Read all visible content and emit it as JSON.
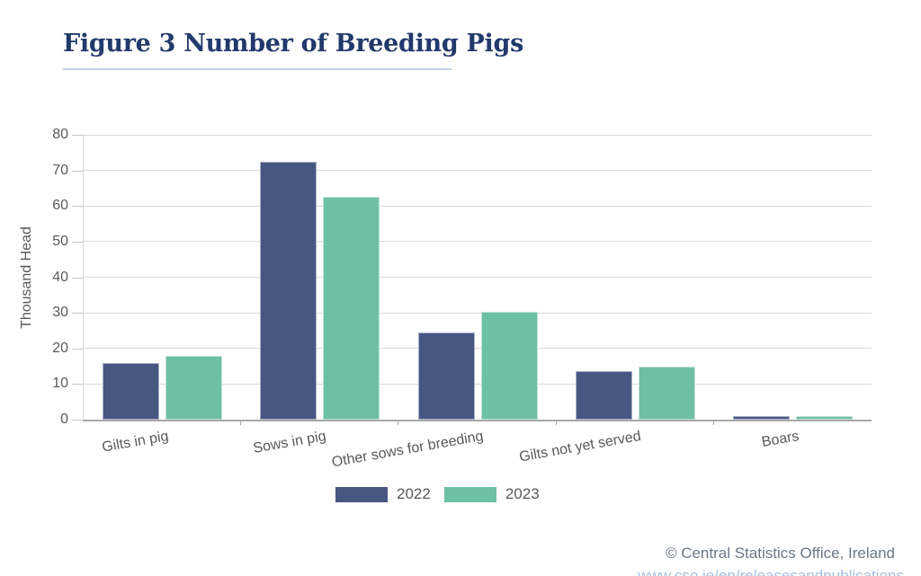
{
  "header": {
    "title": "Figure 3 Number of Breeding Pigs"
  },
  "chart_data": {
    "type": "bar",
    "title": "Figure 3 Number of Breeding Pigs",
    "categories": [
      "Gilts in pig",
      "Sows in pig",
      "Other sows for breeding",
      "Gilts not yet served",
      "Boars"
    ],
    "series": [
      {
        "name": "2022",
        "color": "#475781",
        "values": [
          15.9,
          72.4,
          24.5,
          13.7,
          1.0
        ]
      },
      {
        "name": "2023",
        "color": "#6ec0a4",
        "values": [
          17.9,
          62.6,
          30.3,
          14.8,
          0.9
        ]
      }
    ],
    "xlabel": "",
    "ylabel": "Thousand Head",
    "ylim": [
      0,
      80
    ],
    "yticks": [
      0,
      10,
      20,
      30,
      40,
      50,
      60,
      70,
      80
    ],
    "grid": true,
    "legend_position": "bottom"
  },
  "colors": {
    "title": "#22396b",
    "title_underline": "#c2d0e0",
    "axis_text": "#595959",
    "gridline": "#d9d9d9",
    "axis_line": "#a8a8a8",
    "bar_2022": "#475781",
    "bar_2023": "#6ec0a4",
    "footer_text": "#6b7787",
    "footer_link": "#a3c1e0"
  },
  "footer": {
    "copyright": "© Central Statistics Office, Ireland",
    "link_partial": "www.cso.ie/en/releasesandpublications"
  }
}
